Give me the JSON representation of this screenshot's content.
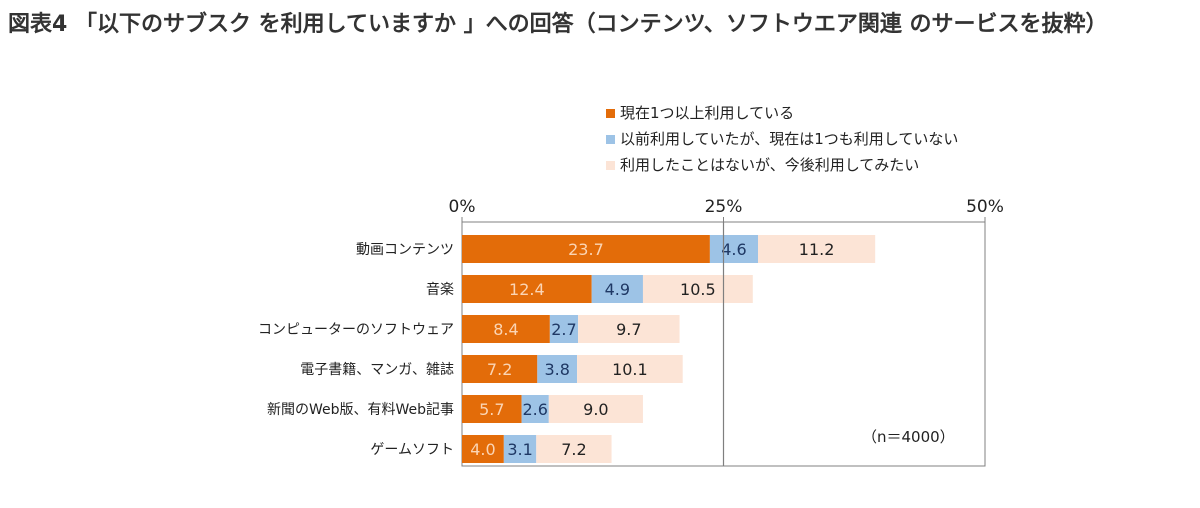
{
  "title": "図表4 「以下のサブスク を利用していますか 」への回答（コンテンツ、ソフトウエア関連 のサービスを抜粋）",
  "note": "（n＝4000）",
  "chart_data": {
    "type": "bar",
    "orientation": "horizontal",
    "stacked": true,
    "categories": [
      "動画コンテンツ",
      "音楽",
      "コンピューターのソフトウェア",
      "電子書籍、マンガ、雑誌",
      "新聞のWeb版、有料Web記事",
      "ゲームソフト"
    ],
    "series": [
      {
        "name": "現在1つ以上利用している",
        "color": "#E36C09",
        "label_color": "#FBD5B5",
        "values": [
          23.7,
          12.4,
          8.4,
          7.2,
          5.7,
          4.0
        ]
      },
      {
        "name": "以前利用していたが、現在は1つも利用していない",
        "color": "#9DC3E6",
        "label_color": "#1F3864",
        "values": [
          4.6,
          4.9,
          2.7,
          3.8,
          2.6,
          3.1
        ]
      },
      {
        "name": "利用したことはないが、今後利用してみたい",
        "color": "#FCE4D6",
        "label_color": "#222222",
        "values": [
          11.2,
          10.5,
          9.7,
          10.1,
          9.0,
          7.2
        ]
      }
    ],
    "value_labels": [
      [
        "23.7",
        "12.4",
        "8.4",
        "7.2",
        "5.7",
        "4.0"
      ],
      [
        "4.6",
        "4.9",
        "2.7",
        "3.8",
        "2.6",
        "3.1"
      ],
      [
        "11.2",
        "10.5",
        "9.7",
        "10.1",
        "9.0",
        "7.2"
      ]
    ],
    "x_ticks": [
      0,
      25,
      50
    ],
    "x_tick_labels": [
      "0%",
      "25%",
      "50%"
    ],
    "xlim": [
      0,
      50
    ],
    "reference_line": 25,
    "legend_position": "top-center"
  }
}
